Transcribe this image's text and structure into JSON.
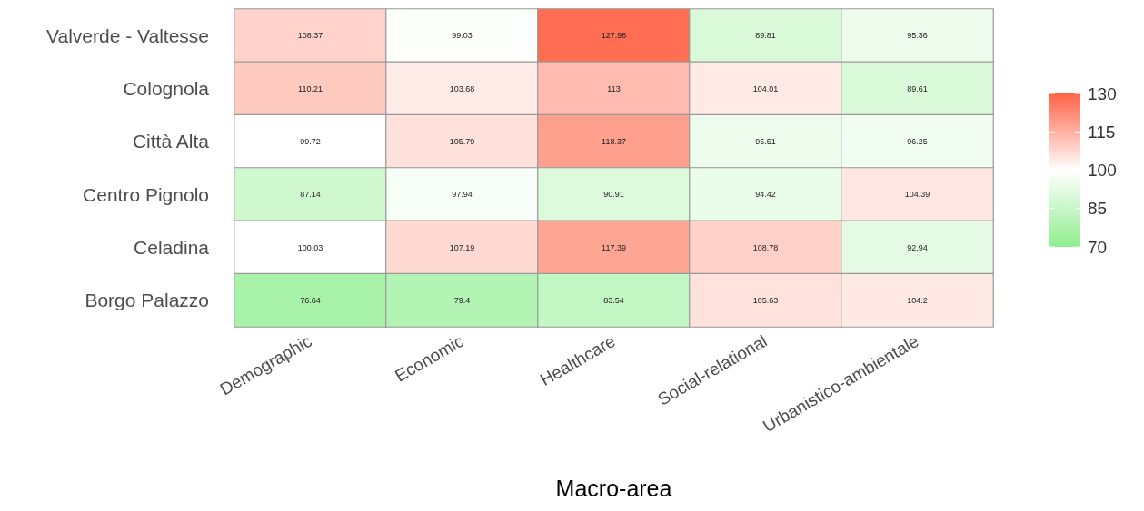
{
  "chart_data": {
    "type": "heatmap",
    "xlabel": "Macro-area",
    "categories": [
      "Demographic",
      "Economic",
      "Healthcare",
      "Social-relational",
      "Urbanistico-ambientale"
    ],
    "y_categories": [
      "Valverde - Valtesse",
      "Colognola",
      "Città Alta",
      "Centro Pignolo",
      "Celadina",
      "Borgo Palazzo"
    ],
    "cells": [
      [
        108.37,
        99.03,
        127.98,
        89.81,
        95.36
      ],
      [
        110.21,
        103.68,
        113,
        104.01,
        89.61
      ],
      [
        99.72,
        105.79,
        118.37,
        95.51,
        96.25
      ],
      [
        87.14,
        97.94,
        90.91,
        94.42,
        104.39
      ],
      [
        100.03,
        107.19,
        117.39,
        108.78,
        92.94
      ],
      [
        76.64,
        79.4,
        83.54,
        105.63,
        104.2
      ]
    ],
    "clim": [
      70,
      130
    ],
    "cticks": [
      70,
      85,
      100,
      115,
      130
    ],
    "colors": [
      "#90ee90",
      "#ffffff",
      "#ff6347"
    ],
    "data_labels": true
  }
}
